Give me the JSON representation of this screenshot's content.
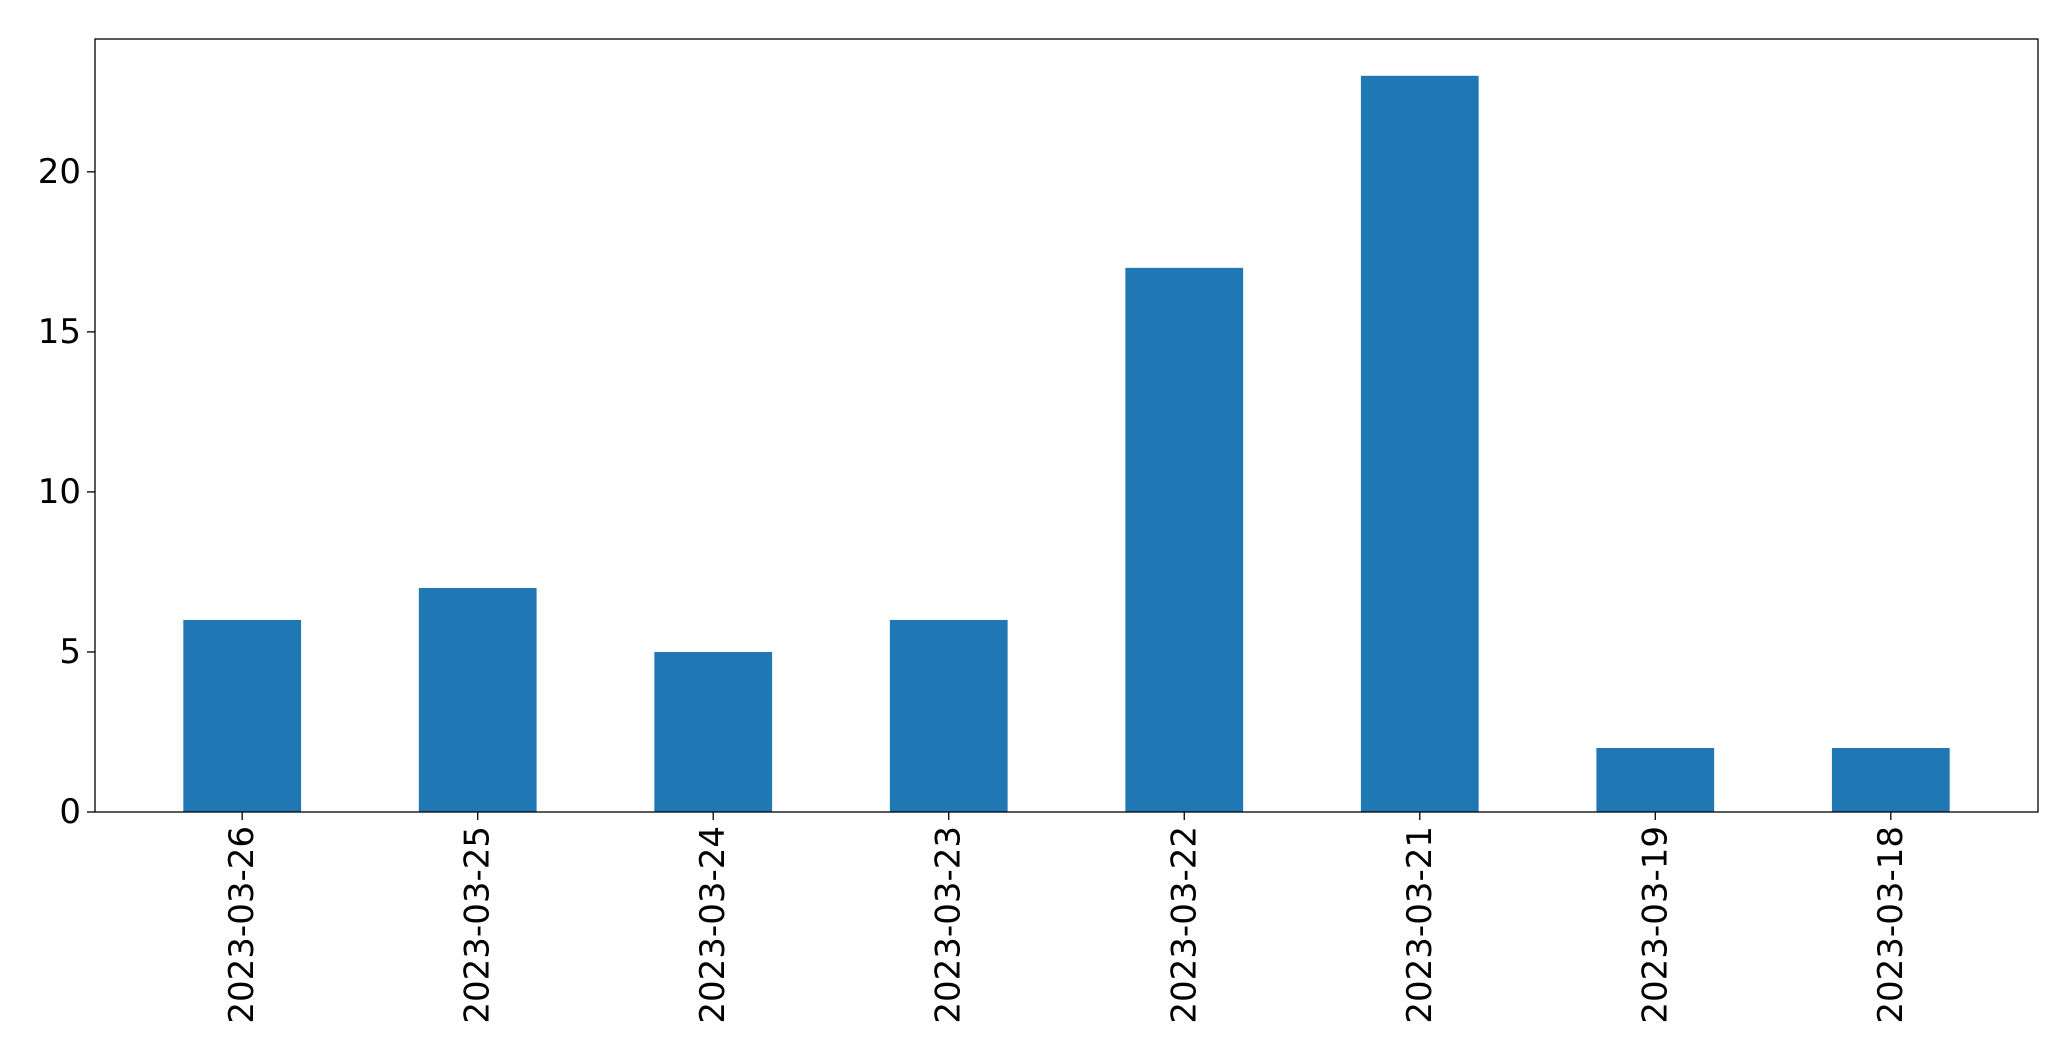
{
  "chart_data": {
    "type": "bar",
    "categories": [
      "2023-03-26",
      "2023-03-25",
      "2023-03-24",
      "2023-03-23",
      "2023-03-22",
      "2023-03-21",
      "2023-03-19",
      "2023-03-18"
    ],
    "values": [
      6,
      7,
      5,
      6,
      17,
      23,
      2,
      2
    ],
    "ylim": [
      0,
      24.15
    ],
    "yticks": [
      0,
      5,
      10,
      15,
      20
    ],
    "grid": false,
    "colors": {
      "bar": "#1f77b4",
      "axes": "#000000",
      "background": "#ffffff"
    }
  }
}
